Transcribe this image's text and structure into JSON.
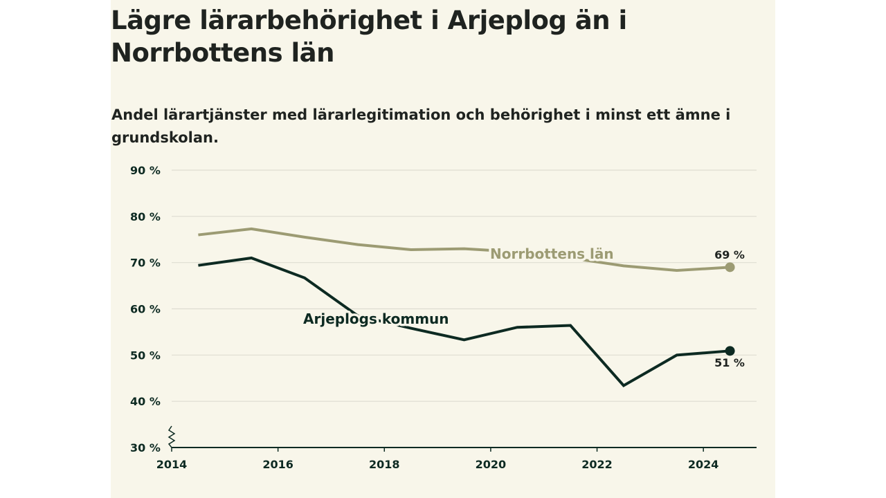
{
  "title": "Lägre lärarbehörighet i Arjeplog än i Norrbottens län",
  "subtitle": "Andel lärartjänster med lärarlegitimation och behörighet i minst ett ämne i grundskolan.",
  "colors": {
    "background": "#f8f6ea",
    "norrbotten": "#9c9b73",
    "arjeplog": "#0d2a22",
    "grid": "#dedcd1",
    "axis": "#0d2a22"
  },
  "chart_data": {
    "type": "line",
    "title": "Lägre lärarbehörighet i Arjeplog än i Norrbottens län",
    "subtitle": "Andel lärartjänster med lärarlegitimation och behörighet i minst ett ämne i grundskolan.",
    "x": [
      2014.5,
      2015.5,
      2016.5,
      2017.5,
      2018.5,
      2019.5,
      2020.5,
      2021.5,
      2022.5,
      2023.5,
      2024.5
    ],
    "xlim": [
      2014,
      2025
    ],
    "ylim": [
      30,
      90
    ],
    "x_ticks": [
      2014,
      2016,
      2018,
      2020,
      2022,
      2024
    ],
    "x_tick_labels": [
      "2014",
      "2016",
      "2018",
      "2020",
      "2022",
      "2024"
    ],
    "y_ticks": [
      30,
      40,
      50,
      60,
      70,
      80,
      90
    ],
    "y_tick_labels": [
      "30 %",
      "40 %",
      "50 %",
      "60 %",
      "70 %",
      "80 %",
      "90 %"
    ],
    "grid": true,
    "axis_break": true,
    "series": [
      {
        "name": "Norrbottens län",
        "values": [
          76.0,
          77.3,
          75.5,
          73.9,
          72.8,
          73.0,
          72.3,
          71.0,
          69.3,
          68.3,
          69.0
        ],
        "end_label": "69 %"
      },
      {
        "name": "Arjeplogs kommun",
        "values": [
          69.4,
          71.0,
          66.7,
          58.5,
          55.8,
          53.3,
          56.0,
          56.4,
          43.4,
          50.0,
          50.9
        ],
        "end_label": "51 %"
      }
    ]
  }
}
